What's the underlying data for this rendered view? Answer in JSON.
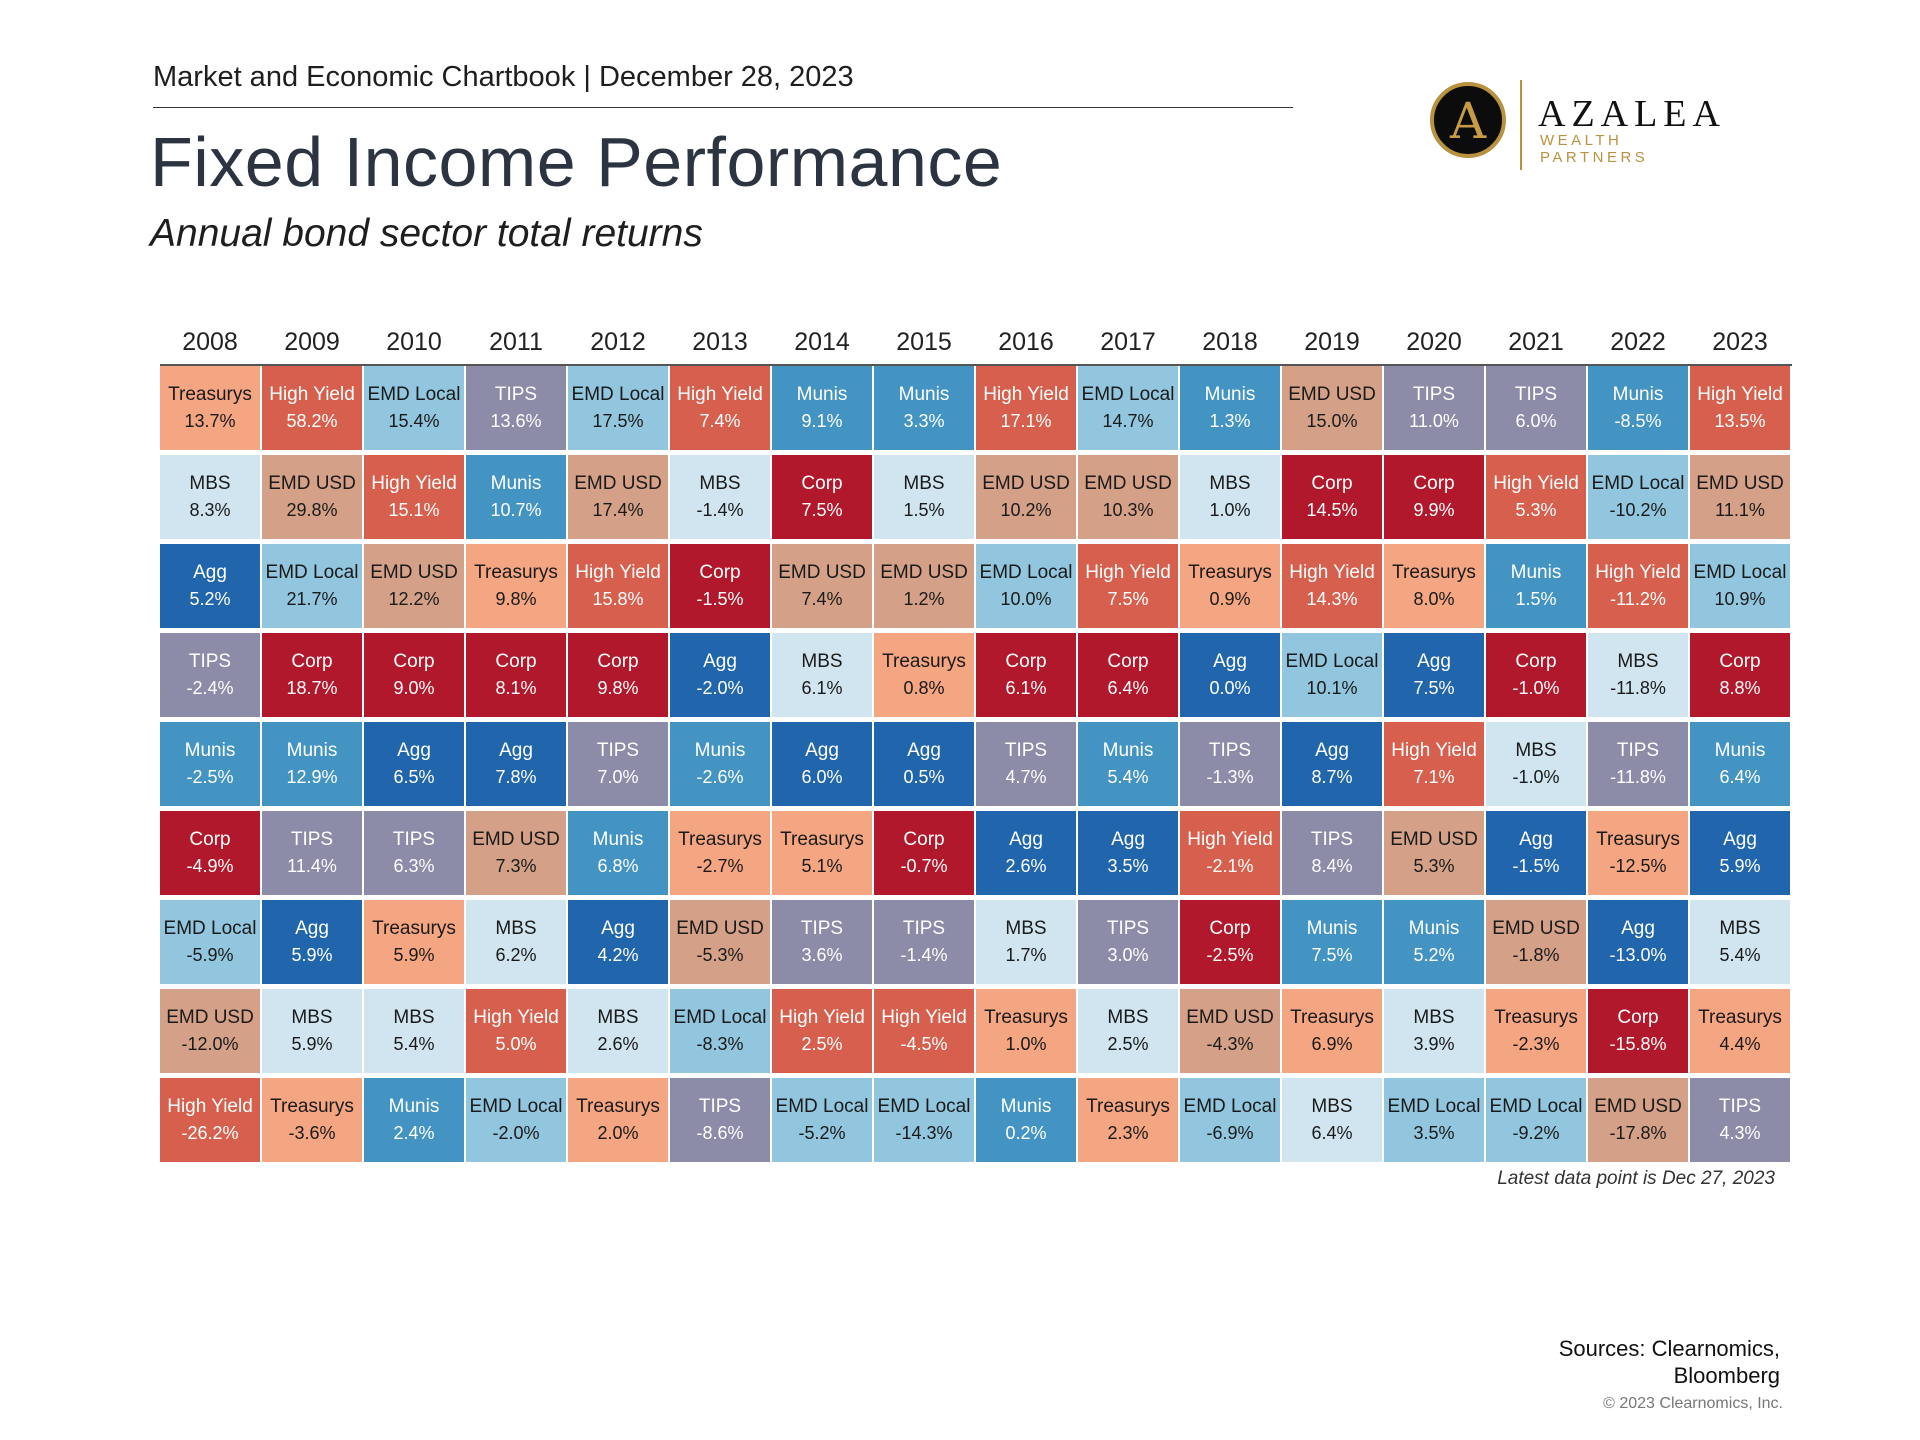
{
  "header": {
    "line": "Market and Economic Chartbook | December 28, 2023",
    "title": "Fixed Income Performance",
    "subtitle": "Annual bond sector total returns"
  },
  "logo": {
    "letter": "A",
    "name": "AZALEA",
    "sub": "WEALTH PARTNERS"
  },
  "colors": {
    "Treasurys": "#f4a582",
    "High Yield": "#d6604d",
    "EMD Local": "#92c5de",
    "TIPS": "#8c8ba8",
    "Munis": "#4393c3",
    "MBS": "#d1e5f0",
    "EMD USD": "#d4a188",
    "Agg": "#2166ac",
    "Corp": "#b2182b"
  },
  "text_colors": {
    "Treasurys": "#1a1a1a",
    "High Yield": "#ffffff",
    "EMD Local": "#1a1a1a",
    "TIPS": "#ffffff",
    "Munis": "#ffffff",
    "MBS": "#1a1a1a",
    "EMD USD": "#1a1a1a",
    "Agg": "#ffffff",
    "Corp": "#ffffff"
  },
  "chart_data": {
    "type": "table",
    "years": [
      "2008",
      "2009",
      "2010",
      "2011",
      "2012",
      "2013",
      "2014",
      "2015",
      "2016",
      "2017",
      "2018",
      "2019",
      "2020",
      "2021",
      "2022",
      "2023"
    ],
    "columns": [
      [
        [
          "Treasurys",
          "13.7%"
        ],
        [
          "MBS",
          "8.3%"
        ],
        [
          "Agg",
          "5.2%"
        ],
        [
          "TIPS",
          "-2.4%"
        ],
        [
          "Munis",
          "-2.5%"
        ],
        [
          "Corp",
          "-4.9%"
        ],
        [
          "EMD Local",
          "-5.9%"
        ],
        [
          "EMD USD",
          "-12.0%"
        ],
        [
          "High Yield",
          "-26.2%"
        ]
      ],
      [
        [
          "High Yield",
          "58.2%"
        ],
        [
          "EMD USD",
          "29.8%"
        ],
        [
          "EMD Local",
          "21.7%"
        ],
        [
          "Corp",
          "18.7%"
        ],
        [
          "Munis",
          "12.9%"
        ],
        [
          "TIPS",
          "11.4%"
        ],
        [
          "Agg",
          "5.9%"
        ],
        [
          "MBS",
          "5.9%"
        ],
        [
          "Treasurys",
          "-3.6%"
        ]
      ],
      [
        [
          "EMD Local",
          "15.4%"
        ],
        [
          "High Yield",
          "15.1%"
        ],
        [
          "EMD USD",
          "12.2%"
        ],
        [
          "Corp",
          "9.0%"
        ],
        [
          "Agg",
          "6.5%"
        ],
        [
          "TIPS",
          "6.3%"
        ],
        [
          "Treasurys",
          "5.9%"
        ],
        [
          "MBS",
          "5.4%"
        ],
        [
          "Munis",
          "2.4%"
        ]
      ],
      [
        [
          "TIPS",
          "13.6%"
        ],
        [
          "Munis",
          "10.7%"
        ],
        [
          "Treasurys",
          "9.8%"
        ],
        [
          "Corp",
          "8.1%"
        ],
        [
          "Agg",
          "7.8%"
        ],
        [
          "EMD USD",
          "7.3%"
        ],
        [
          "MBS",
          "6.2%"
        ],
        [
          "High Yield",
          "5.0%"
        ],
        [
          "EMD Local",
          "-2.0%"
        ]
      ],
      [
        [
          "EMD Local",
          "17.5%"
        ],
        [
          "EMD USD",
          "17.4%"
        ],
        [
          "High Yield",
          "15.8%"
        ],
        [
          "Corp",
          "9.8%"
        ],
        [
          "TIPS",
          "7.0%"
        ],
        [
          "Munis",
          "6.8%"
        ],
        [
          "Agg",
          "4.2%"
        ],
        [
          "MBS",
          "2.6%"
        ],
        [
          "Treasurys",
          "2.0%"
        ]
      ],
      [
        [
          "High Yield",
          "7.4%"
        ],
        [
          "MBS",
          "-1.4%"
        ],
        [
          "Corp",
          "-1.5%"
        ],
        [
          "Agg",
          "-2.0%"
        ],
        [
          "Munis",
          "-2.6%"
        ],
        [
          "Treasurys",
          "-2.7%"
        ],
        [
          "EMD USD",
          "-5.3%"
        ],
        [
          "EMD Local",
          "-8.3%"
        ],
        [
          "TIPS",
          "-8.6%"
        ]
      ],
      [
        [
          "Munis",
          "9.1%"
        ],
        [
          "Corp",
          "7.5%"
        ],
        [
          "EMD USD",
          "7.4%"
        ],
        [
          "MBS",
          "6.1%"
        ],
        [
          "Agg",
          "6.0%"
        ],
        [
          "Treasurys",
          "5.1%"
        ],
        [
          "TIPS",
          "3.6%"
        ],
        [
          "High Yield",
          "2.5%"
        ],
        [
          "EMD Local",
          "-5.2%"
        ]
      ],
      [
        [
          "Munis",
          "3.3%"
        ],
        [
          "MBS",
          "1.5%"
        ],
        [
          "EMD USD",
          "1.2%"
        ],
        [
          "Treasurys",
          "0.8%"
        ],
        [
          "Agg",
          "0.5%"
        ],
        [
          "Corp",
          "-0.7%"
        ],
        [
          "TIPS",
          "-1.4%"
        ],
        [
          "High Yield",
          "-4.5%"
        ],
        [
          "EMD Local",
          "-14.3%"
        ]
      ],
      [
        [
          "High Yield",
          "17.1%"
        ],
        [
          "EMD USD",
          "10.2%"
        ],
        [
          "EMD Local",
          "10.0%"
        ],
        [
          "Corp",
          "6.1%"
        ],
        [
          "TIPS",
          "4.7%"
        ],
        [
          "Agg",
          "2.6%"
        ],
        [
          "MBS",
          "1.7%"
        ],
        [
          "Treasurys",
          "1.0%"
        ],
        [
          "Munis",
          "0.2%"
        ]
      ],
      [
        [
          "EMD Local",
          "14.7%"
        ],
        [
          "EMD USD",
          "10.3%"
        ],
        [
          "High Yield",
          "7.5%"
        ],
        [
          "Corp",
          "6.4%"
        ],
        [
          "Munis",
          "5.4%"
        ],
        [
          "Agg",
          "3.5%"
        ],
        [
          "TIPS",
          "3.0%"
        ],
        [
          "MBS",
          "2.5%"
        ],
        [
          "Treasurys",
          "2.3%"
        ]
      ],
      [
        [
          "Munis",
          "1.3%"
        ],
        [
          "MBS",
          "1.0%"
        ],
        [
          "Treasurys",
          "0.9%"
        ],
        [
          "Agg",
          "0.0%"
        ],
        [
          "TIPS",
          "-1.3%"
        ],
        [
          "High Yield",
          "-2.1%"
        ],
        [
          "Corp",
          "-2.5%"
        ],
        [
          "EMD USD",
          "-4.3%"
        ],
        [
          "EMD Local",
          "-6.9%"
        ]
      ],
      [
        [
          "EMD USD",
          "15.0%"
        ],
        [
          "Corp",
          "14.5%"
        ],
        [
          "High Yield",
          "14.3%"
        ],
        [
          "EMD Local",
          "10.1%"
        ],
        [
          "Agg",
          "8.7%"
        ],
        [
          "TIPS",
          "8.4%"
        ],
        [
          "Munis",
          "7.5%"
        ],
        [
          "Treasurys",
          "6.9%"
        ],
        [
          "MBS",
          "6.4%"
        ]
      ],
      [
        [
          "TIPS",
          "11.0%"
        ],
        [
          "Corp",
          "9.9%"
        ],
        [
          "Treasurys",
          "8.0%"
        ],
        [
          "Agg",
          "7.5%"
        ],
        [
          "High Yield",
          "7.1%"
        ],
        [
          "EMD USD",
          "5.3%"
        ],
        [
          "Munis",
          "5.2%"
        ],
        [
          "MBS",
          "3.9%"
        ],
        [
          "EMD Local",
          "3.5%"
        ]
      ],
      [
        [
          "TIPS",
          "6.0%"
        ],
        [
          "High Yield",
          "5.3%"
        ],
        [
          "Munis",
          "1.5%"
        ],
        [
          "Corp",
          "-1.0%"
        ],
        [
          "MBS",
          "-1.0%"
        ],
        [
          "Agg",
          "-1.5%"
        ],
        [
          "EMD USD",
          "-1.8%"
        ],
        [
          "Treasurys",
          "-2.3%"
        ],
        [
          "EMD Local",
          "-9.2%"
        ]
      ],
      [
        [
          "Munis",
          "-8.5%"
        ],
        [
          "EMD Local",
          "-10.2%"
        ],
        [
          "High Yield",
          "-11.2%"
        ],
        [
          "MBS",
          "-11.8%"
        ],
        [
          "TIPS",
          "-11.8%"
        ],
        [
          "Treasurys",
          "-12.5%"
        ],
        [
          "Agg",
          "-13.0%"
        ],
        [
          "Corp",
          "-15.8%"
        ],
        [
          "EMD USD",
          "-17.8%"
        ]
      ],
      [
        [
          "High Yield",
          "13.5%"
        ],
        [
          "EMD USD",
          "11.1%"
        ],
        [
          "EMD Local",
          "10.9%"
        ],
        [
          "Corp",
          "8.8%"
        ],
        [
          "Munis",
          "6.4%"
        ],
        [
          "Agg",
          "5.9%"
        ],
        [
          "MBS",
          "5.4%"
        ],
        [
          "Treasurys",
          "4.4%"
        ],
        [
          "TIPS",
          "4.3%"
        ]
      ]
    ]
  },
  "footnote": "Latest data point is Dec 27, 2023",
  "sources": {
    "line1": "Sources: Clearnomics,",
    "line2": "Bloomberg"
  },
  "copyright": "© 2023 Clearnomics, Inc."
}
